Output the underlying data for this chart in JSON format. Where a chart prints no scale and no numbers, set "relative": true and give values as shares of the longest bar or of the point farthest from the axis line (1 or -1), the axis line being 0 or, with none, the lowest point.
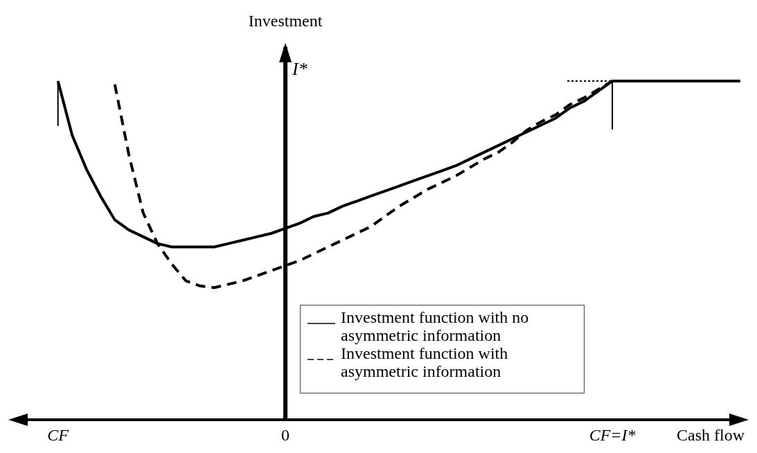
{
  "chart_data": {
    "type": "line",
    "relative": true,
    "ylabel": "Investment",
    "xlabel": "Cash flow",
    "categories": [
      "CF",
      null,
      null,
      null,
      null,
      null,
      null,
      null,
      null,
      null,
      null,
      null,
      null,
      null,
      null,
      null,
      "0",
      null,
      null,
      null,
      null,
      null,
      null,
      null,
      null,
      null,
      null,
      null,
      null,
      null,
      null,
      null,
      null,
      null,
      null,
      null,
      null,
      null,
      null,
      "CF=I*",
      null,
      null,
      null,
      null,
      null,
      null,
      null,
      null,
      null
    ],
    "annotations": [
      "I*"
    ],
    "legend": "bottom",
    "marker": "none",
    "series": [
      {
        "name": "Investment function with no asymmetric information",
        "color": "#000000",
        "line_style": "solid",
        "values": [
          1.0,
          0.84,
          0.74,
          0.66,
          0.59,
          0.56,
          0.54,
          0.52,
          0.51,
          0.51,
          0.51,
          0.51,
          0.52,
          0.53,
          0.54,
          0.55,
          0.565,
          0.58,
          0.6,
          0.61,
          0.63,
          0.645,
          0.66,
          0.675,
          0.69,
          0.705,
          0.72,
          0.735,
          0.75,
          0.77,
          0.79,
          0.81,
          0.83,
          0.85,
          0.87,
          0.89,
          0.92,
          0.94,
          0.97,
          1.0,
          1.0,
          1.0,
          1.0,
          1.0,
          1.0,
          1.0,
          1.0,
          1.0,
          1.0
        ]
      },
      {
        "name": "Investment function with asymmetric information",
        "color": "#000000",
        "line_style": "dashed",
        "values": [
          null,
          null,
          null,
          null,
          0.99,
          0.78,
          0.61,
          0.52,
          0.46,
          0.41,
          0.395,
          0.39,
          0.4,
          0.41,
          0.425,
          0.44,
          0.455,
          0.47,
          0.49,
          0.51,
          0.53,
          0.55,
          0.57,
          0.6,
          0.63,
          0.655,
          0.68,
          0.7,
          0.72,
          0.745,
          0.77,
          0.79,
          0.82,
          0.855,
          0.88,
          0.9,
          0.93,
          0.95,
          0.975,
          1.0,
          null,
          null,
          null,
          null,
          null,
          null,
          null,
          null,
          null
        ]
      }
    ]
  }
}
